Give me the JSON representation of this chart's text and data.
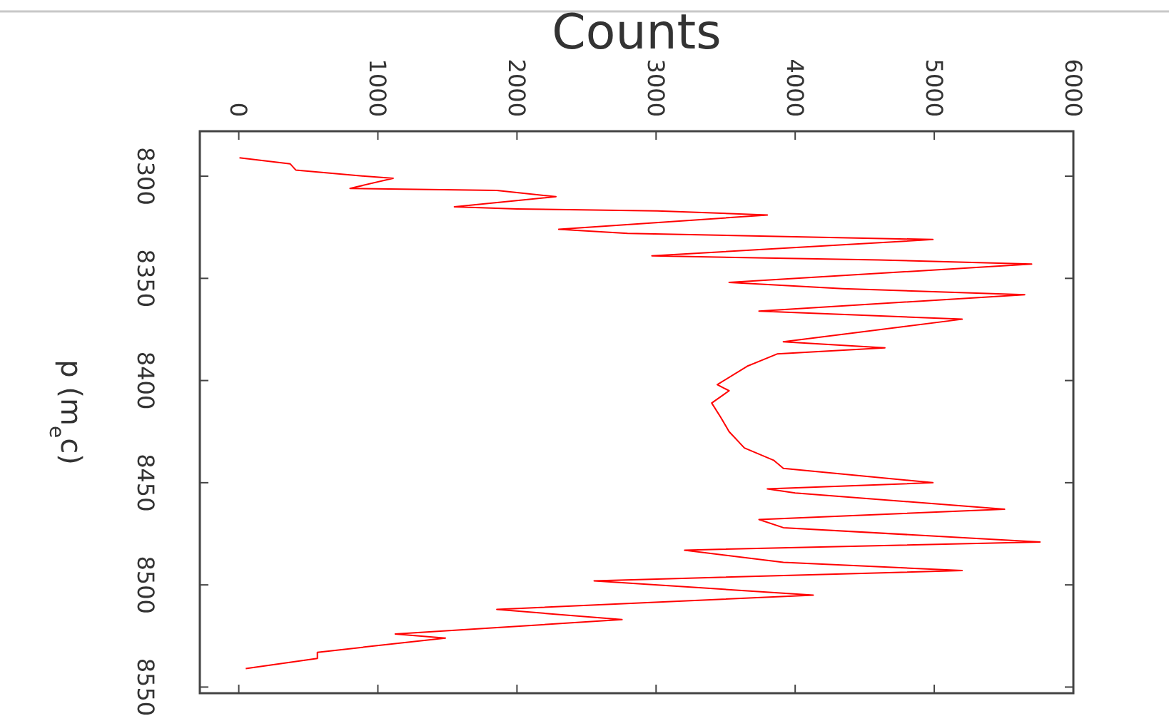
{
  "chart_data": {
    "type": "line",
    "xlabel": "Counts",
    "ylabel": "p (m$_{e}$c)",
    "xlim": [
      -280,
      6000
    ],
    "ylim": [
      8553,
      8278
    ],
    "xticks": [
      0,
      1000,
      2000,
      3000,
      4000,
      5000,
      6000
    ],
    "yticks": [
      8300,
      8350,
      8400,
      8450,
      8500,
      8550
    ],
    "grid": false,
    "series": [
      {
        "color": "#ff0000",
        "x": [
          5,
          370,
          410,
          905,
          1110,
          800,
          1855,
          2280,
          1550,
          2000,
          3010,
          3800,
          2300,
          2795,
          4990,
          2970,
          4600,
          5700,
          3525,
          4340,
          5650,
          3740,
          5200,
          3915,
          4645,
          3870,
          3655,
          3440,
          3525,
          3400,
          3465,
          3525,
          3635,
          3845,
          3915,
          4990,
          3800,
          4000,
          5505,
          3740,
          3915,
          5760,
          3205,
          3915,
          5200,
          2555,
          4130,
          1855,
          2755,
          1125,
          1485,
          565,
          565,
          50
        ],
        "values": [
          8291,
          8294,
          8297,
          8300,
          8301,
          8306,
          8307,
          8310,
          8315,
          8316,
          8317,
          8319,
          8326,
          8328,
          8331,
          8339,
          8341,
          8343,
          8352,
          8355,
          8358,
          8366,
          8370,
          8381,
          8384,
          8387,
          8393,
          8402,
          8405,
          8411,
          8418,
          8425,
          8433,
          8439,
          8443,
          8450,
          8453,
          8455,
          8463,
          8468,
          8472,
          8479,
          8483,
          8489,
          8493,
          8498,
          8505,
          8512,
          8517,
          8524,
          8526,
          8533,
          8536,
          8541
        ]
      }
    ]
  }
}
